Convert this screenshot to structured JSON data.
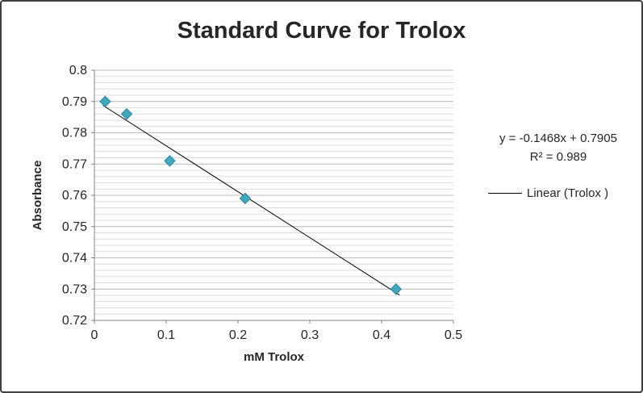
{
  "chart_data": {
    "type": "scatter",
    "title": "Standard Curve for Trolox",
    "xlabel": "mM Trolox",
    "ylabel": "Absorbance",
    "xlim": [
      0,
      0.5
    ],
    "ylim": [
      0.72,
      0.8
    ],
    "x_ticks": [
      0,
      0.1,
      0.2,
      0.3,
      0.4,
      0.5
    ],
    "y_ticks": [
      0.72,
      0.73,
      0.74,
      0.75,
      0.76,
      0.77,
      0.78,
      0.79,
      0.8
    ],
    "grid": {
      "minor_step": 0.002,
      "major_step": 0.01
    },
    "series": [
      {
        "name": "Trolox",
        "x": [
          0.015,
          0.045,
          0.105,
          0.21,
          0.42
        ],
        "y": [
          0.79,
          0.786,
          0.771,
          0.759,
          0.73
        ]
      }
    ],
    "trendline": {
      "equation": "y = -0.1468x + 0.7905",
      "r2": "R² = 0.989",
      "slope": -0.1468,
      "intercept": 0.7905,
      "x_start": 0.012,
      "x_end": 0.425,
      "label": "Linear (Trolox )"
    },
    "colors": {
      "marker": "#3fa8c0",
      "marker_edge": "#2c85a0",
      "trendline": "#000000",
      "grid_minor": "#dcdcdc",
      "grid_major": "#bfbfbf",
      "axis": "#808080",
      "text": "#262626"
    }
  }
}
